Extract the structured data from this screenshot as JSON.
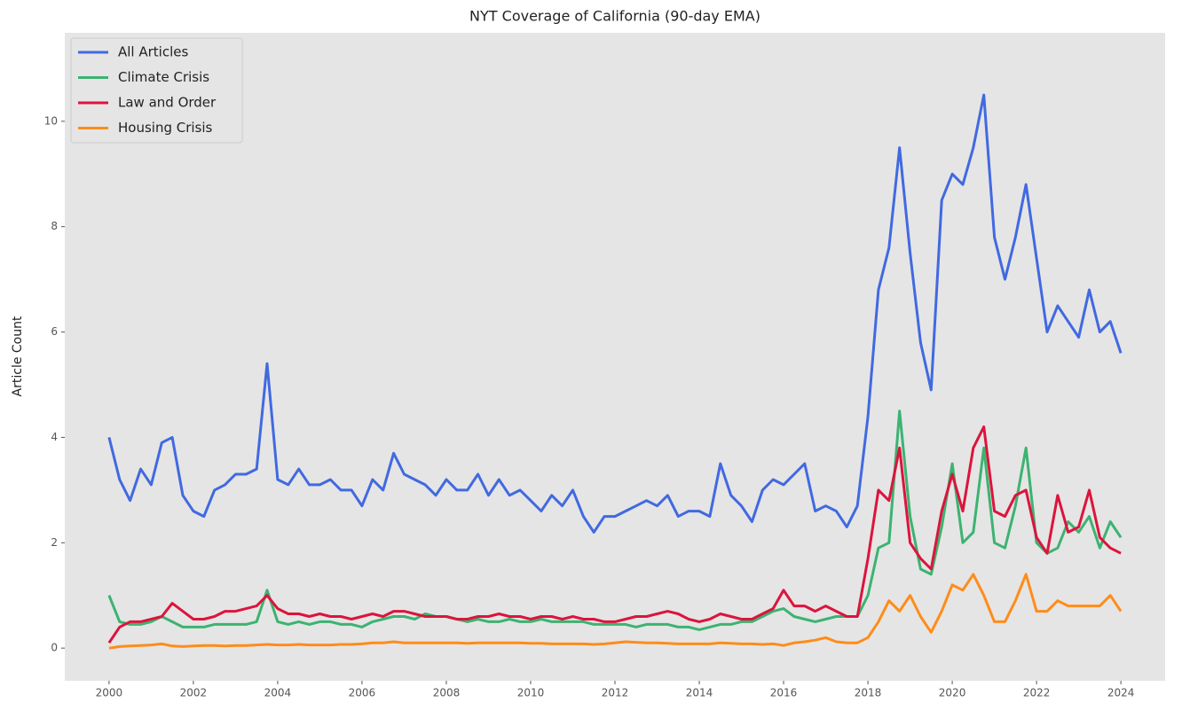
{
  "chart_data": {
    "type": "line",
    "title": "NYT Coverage of California (90-day EMA)",
    "y_label": "Article Count",
    "x": [
      2000,
      2000.25,
      2000.5,
      2000.75,
      2001,
      2001.25,
      2001.5,
      2001.75,
      2002,
      2002.25,
      2002.5,
      2002.75,
      2003,
      2003.25,
      2003.5,
      2003.75,
      2004,
      2004.25,
      2004.5,
      2004.75,
      2005,
      2005.25,
      2005.5,
      2005.75,
      2006,
      2006.25,
      2006.5,
      2006.75,
      2007,
      2007.25,
      2007.5,
      2007.75,
      2008,
      2008.25,
      2008.5,
      2008.75,
      2009,
      2009.25,
      2009.5,
      2009.75,
      2010,
      2010.25,
      2010.5,
      2010.75,
      2011,
      2011.25,
      2011.5,
      2011.75,
      2012,
      2012.25,
      2012.5,
      2012.75,
      2013,
      2013.25,
      2013.5,
      2013.75,
      2014,
      2014.25,
      2014.5,
      2014.75,
      2015,
      2015.25,
      2015.5,
      2015.75,
      2016,
      2016.25,
      2016.5,
      2016.75,
      2017,
      2017.25,
      2017.5,
      2017.75,
      2018,
      2018.25,
      2018.5,
      2018.75,
      2019,
      2019.25,
      2019.5,
      2019.75,
      2020,
      2020.25,
      2020.5,
      2020.75,
      2021,
      2021.25,
      2021.5,
      2021.75,
      2022,
      2022.25,
      2022.5,
      2022.75,
      2023,
      2023.25,
      2023.5,
      2023.75,
      2024
    ],
    "series": [
      {
        "name": "All Articles",
        "color": "#4169e1",
        "values": [
          4.0,
          3.2,
          2.8,
          3.4,
          3.1,
          3.9,
          4.0,
          2.9,
          2.6,
          2.5,
          3.0,
          3.1,
          3.3,
          3.3,
          3.4,
          5.4,
          3.2,
          3.1,
          3.4,
          3.1,
          3.1,
          3.2,
          3.0,
          3.0,
          2.7,
          3.2,
          3.0,
          3.7,
          3.3,
          3.2,
          3.1,
          2.9,
          3.2,
          3.0,
          3.0,
          3.3,
          2.9,
          3.2,
          2.9,
          3.0,
          2.8,
          2.6,
          2.9,
          2.7,
          3.0,
          2.5,
          2.2,
          2.5,
          2.5,
          2.6,
          2.7,
          2.8,
          2.7,
          2.9,
          2.5,
          2.6,
          2.6,
          2.5,
          3.5,
          2.9,
          2.7,
          2.4,
          3.0,
          3.2,
          3.1,
          3.3,
          3.5,
          2.6,
          2.7,
          2.6,
          2.3,
          2.7,
          4.4,
          6.8,
          7.6,
          9.5,
          7.5,
          5.8,
          4.9,
          8.5,
          9.0,
          8.8,
          9.5,
          10.5,
          7.8,
          7.0,
          7.8,
          8.8,
          7.4,
          6.0,
          6.5,
          6.2,
          5.9,
          6.8,
          6.0,
          6.2,
          5.6
        ]
      },
      {
        "name": "Climate Crisis",
        "color": "#3cb371",
        "values": [
          1.0,
          0.5,
          0.45,
          0.45,
          0.5,
          0.6,
          0.5,
          0.4,
          0.4,
          0.4,
          0.45,
          0.45,
          0.45,
          0.45,
          0.5,
          1.1,
          0.5,
          0.45,
          0.5,
          0.45,
          0.5,
          0.5,
          0.45,
          0.45,
          0.4,
          0.5,
          0.55,
          0.6,
          0.6,
          0.55,
          0.65,
          0.6,
          0.6,
          0.55,
          0.5,
          0.55,
          0.5,
          0.5,
          0.55,
          0.5,
          0.5,
          0.55,
          0.5,
          0.5,
          0.5,
          0.5,
          0.45,
          0.45,
          0.45,
          0.45,
          0.4,
          0.45,
          0.45,
          0.45,
          0.4,
          0.4,
          0.35,
          0.4,
          0.45,
          0.45,
          0.5,
          0.5,
          0.6,
          0.7,
          0.75,
          0.6,
          0.55,
          0.5,
          0.55,
          0.6,
          0.6,
          0.6,
          1.0,
          1.9,
          2.0,
          4.5,
          2.5,
          1.5,
          1.4,
          2.3,
          3.5,
          2.0,
          2.2,
          3.8,
          2.0,
          1.9,
          2.7,
          3.8,
          2.0,
          1.8,
          1.9,
          2.4,
          2.2,
          2.5,
          1.9,
          2.4,
          2.1
        ]
      },
      {
        "name": "Law and Order",
        "color": "#dc143c",
        "values": [
          0.1,
          0.4,
          0.5,
          0.5,
          0.55,
          0.6,
          0.85,
          0.7,
          0.55,
          0.55,
          0.6,
          0.7,
          0.7,
          0.75,
          0.8,
          1.0,
          0.75,
          0.65,
          0.65,
          0.6,
          0.65,
          0.6,
          0.6,
          0.55,
          0.6,
          0.65,
          0.6,
          0.7,
          0.7,
          0.65,
          0.6,
          0.6,
          0.6,
          0.55,
          0.55,
          0.6,
          0.6,
          0.65,
          0.6,
          0.6,
          0.55,
          0.6,
          0.6,
          0.55,
          0.6,
          0.55,
          0.55,
          0.5,
          0.5,
          0.55,
          0.6,
          0.6,
          0.65,
          0.7,
          0.65,
          0.55,
          0.5,
          0.55,
          0.65,
          0.6,
          0.55,
          0.55,
          0.65,
          0.75,
          1.1,
          0.8,
          0.8,
          0.7,
          0.8,
          0.7,
          0.6,
          0.6,
          1.7,
          3.0,
          2.8,
          3.8,
          2.0,
          1.7,
          1.5,
          2.6,
          3.3,
          2.6,
          3.8,
          4.2,
          2.6,
          2.5,
          2.9,
          3.0,
          2.1,
          1.8,
          2.9,
          2.2,
          2.3,
          3.0,
          2.1,
          1.9,
          1.8
        ]
      },
      {
        "name": "Housing Crisis",
        "color": "#ff8c1a",
        "values": [
          0.0,
          0.03,
          0.04,
          0.05,
          0.06,
          0.08,
          0.04,
          0.03,
          0.04,
          0.05,
          0.05,
          0.04,
          0.05,
          0.05,
          0.06,
          0.07,
          0.06,
          0.06,
          0.07,
          0.06,
          0.06,
          0.06,
          0.07,
          0.07,
          0.08,
          0.1,
          0.1,
          0.12,
          0.1,
          0.1,
          0.1,
          0.1,
          0.1,
          0.1,
          0.09,
          0.1,
          0.1,
          0.1,
          0.1,
          0.1,
          0.09,
          0.09,
          0.08,
          0.08,
          0.08,
          0.08,
          0.07,
          0.08,
          0.1,
          0.12,
          0.11,
          0.1,
          0.1,
          0.09,
          0.08,
          0.08,
          0.08,
          0.08,
          0.1,
          0.09,
          0.08,
          0.08,
          0.07,
          0.08,
          0.05,
          0.1,
          0.12,
          0.15,
          0.2,
          0.12,
          0.1,
          0.1,
          0.2,
          0.5,
          0.9,
          0.7,
          1.0,
          0.6,
          0.3,
          0.7,
          1.2,
          1.1,
          1.4,
          1.0,
          0.5,
          0.5,
          0.9,
          1.4,
          0.7,
          0.7,
          0.9,
          0.8,
          0.8,
          0.8,
          0.8,
          1.0,
          0.7
        ]
      }
    ],
    "xlim": [
      1998.95,
      2025.05
    ],
    "xticks": [
      2000,
      2002,
      2004,
      2006,
      2008,
      2010,
      2012,
      2014,
      2016,
      2018,
      2020,
      2022,
      2024
    ],
    "ylim": [
      -0.62,
      11.68
    ],
    "yticks": [
      0,
      2,
      4,
      6,
      8,
      10
    ],
    "grid": false,
    "legend": "upper left"
  }
}
